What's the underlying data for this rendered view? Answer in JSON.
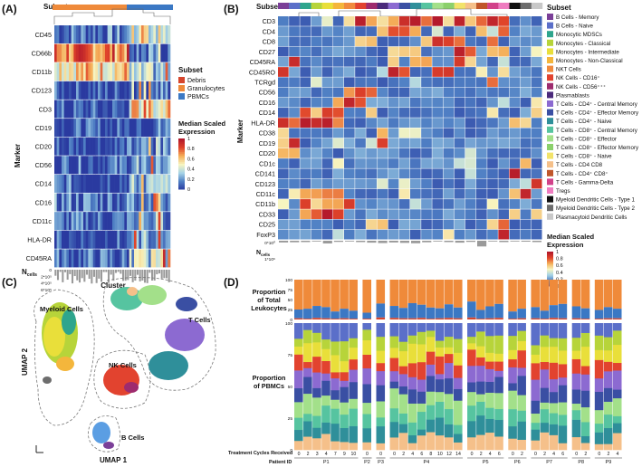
{
  "panels": {
    "A": "(A)",
    "B": "(B)",
    "C": "(C)",
    "D": "(D)"
  },
  "shared": {
    "subset_header": "Subset",
    "marker_label": "Marker",
    "ncells_prefix": "N",
    "ncells_sub": "cells",
    "legend_title_1": "Median Scaled",
    "legend_title_2": "Expression",
    "colorbar_ticks": [
      "1",
      "0.8",
      "0.6",
      "0.4",
      "0.2",
      "0"
    ],
    "colorbar_tick_values": [
      1,
      0.8,
      0.6,
      0.4,
      0.2,
      0
    ],
    "heat_colors": [
      "#2a3aa0",
      "#4f7fc4",
      "#a6d3e6",
      "#f7f5c0",
      "#f5b05a",
      "#e0442a",
      "#b2182b"
    ]
  },
  "chart_data": [
    {
      "id": "A",
      "type": "heatmap",
      "xlabel": "Cluster",
      "ylabel": "Marker",
      "markers": [
        "CD45",
        "CD66b",
        "CD11b",
        "CD123",
        "CD3",
        "CD19",
        "CD20",
        "CD56",
        "CD14",
        "CD16",
        "CD11c",
        "HLA-DR",
        "CD45RA"
      ],
      "n_clusters": 48,
      "subset_legend": [
        {
          "name": "Debris",
          "color": "#d6452c"
        },
        {
          "name": "Granulocytes",
          "color": "#ef8a3a"
        },
        {
          "name": "PBMCs",
          "color": "#3b78c4"
        }
      ],
      "ncells_ticks": [
        "0",
        "2*10⁵",
        "4*10⁵",
        "6*10⁵"
      ],
      "ncells_max": 600000
    },
    {
      "id": "B",
      "type": "heatmap",
      "ylabel": "Marker",
      "markers": [
        "CD3",
        "CD4",
        "CD8",
        "CD27",
        "CD45RA",
        "CD45RO",
        "TCRgd",
        "CD56",
        "CD16",
        "CD14",
        "HLA-DR",
        "CD38",
        "CD19",
        "CD20",
        "CD1c",
        "CD141",
        "CD123",
        "CD11c",
        "CD11b",
        "CD33",
        "CD25",
        "FoxP3"
      ],
      "subsets": [
        {
          "name": "B Cells - Memory",
          "color": "#7b3f98"
        },
        {
          "name": "B Cells - Naive",
          "color": "#5b6fc9"
        },
        {
          "name": "Monocytic MDSCs",
          "color": "#2ea58d"
        },
        {
          "name": "Monocytes - Classical",
          "color": "#b7d43a"
        },
        {
          "name": "Monocytes - Intermediate",
          "color": "#e9df3a"
        },
        {
          "name": "Monocytes - Non-Classical",
          "color": "#f4b63c"
        },
        {
          "name": "NKT Cells",
          "color": "#f08a3e"
        },
        {
          "name": "NK Cells - CD16⁺",
          "color": "#e2432f"
        },
        {
          "name": "NK Cells - CD56⁺⁺⁺",
          "color": "#9e2b6e"
        },
        {
          "name": "Plasmablasts",
          "color": "#4b2a7b"
        },
        {
          "name": "T Cells - CD4⁺ - Central Memory",
          "color": "#8c6ad1"
        },
        {
          "name": "T Cells - CD4⁺ - Effector Memory",
          "color": "#3a4fa3"
        },
        {
          "name": "T Cells - CD4⁺ - Naive",
          "color": "#2f8f9a"
        },
        {
          "name": "T Cells - CD8⁺ - Central Memory",
          "color": "#56c4a0"
        },
        {
          "name": "T Cells - CD8⁺ - Effector",
          "color": "#a3e08a"
        },
        {
          "name": "T Cells - CD8⁺ - Effector Memory",
          "color": "#8bd06b"
        },
        {
          "name": "T Cells - CD8⁺ - Naive",
          "color": "#f2e36a"
        },
        {
          "name": "T Cells - CD4 CD8",
          "color": "#f5c08a"
        },
        {
          "name": "T Cells - CD4⁺ CD8⁺",
          "color": "#c0562a"
        },
        {
          "name": "T Cells - Gamma-Delta",
          "color": "#d2428a"
        },
        {
          "name": "Tregs",
          "color": "#ef7cc0"
        },
        {
          "name": "Myeloid Dendritic Cells - Type 1",
          "color": "#111111"
        },
        {
          "name": "Myeloid Dendritic Cells - Type 2",
          "color": "#6d6d6d"
        },
        {
          "name": "Plasmacytoid Dendritic Cells",
          "color": "#c8c8c8"
        }
      ],
      "ncells_ticks": [
        "0*10⁰",
        "1*10⁶"
      ],
      "ncells_max": 1000000,
      "ncells_values": [
        0.05,
        0.04,
        0.03,
        0.0,
        0.1,
        0.02,
        0.0,
        0.03,
        0.06,
        0.08,
        0.05,
        0.07,
        0.09,
        0.04,
        0.0,
        0.03,
        0.06,
        0.02,
        0.25,
        0.0,
        0.03,
        0.0,
        0.01,
        0.03
      ]
    },
    {
      "id": "C",
      "type": "scatter",
      "xlabel": "UMAP 1",
      "ylabel": "UMAP 2",
      "cluster_labels": [
        "Myeloid Cells",
        "NK Cells",
        "T Cells",
        "B Cells"
      ]
    },
    {
      "id": "D",
      "type": "bar",
      "stacked": true,
      "top_label": [
        "Proportion",
        "of Total",
        "Leukocytes"
      ],
      "bottom_label": [
        "Proportion",
        "of PBMCs"
      ],
      "yticks": [
        "100",
        "75",
        "50",
        "25",
        "0"
      ],
      "ylim": [
        0,
        100
      ],
      "cycles_label": "Treatment Cycles Received",
      "patient_label": "Patient ID",
      "patients": [
        {
          "id": "P1",
          "cycles": [
            "0",
            "2",
            "3",
            "4",
            "7",
            "9",
            "10"
          ]
        },
        {
          "id": "P2",
          "cycles": [
            "0"
          ]
        },
        {
          "id": "P3",
          "cycles": [
            "0"
          ]
        },
        {
          "id": "P4",
          "cycles": [
            "0",
            "2",
            "4",
            "6",
            "8",
            "10",
            "12",
            "14"
          ]
        },
        {
          "id": "P5",
          "cycles": [
            "0",
            "2",
            "4",
            "6"
          ]
        },
        {
          "id": "P6",
          "cycles": [
            "0",
            "2"
          ]
        },
        {
          "id": "P7",
          "cycles": [
            "0",
            "2",
            "4",
            "6"
          ]
        },
        {
          "id": "P8",
          "cycles": [
            "0",
            "2"
          ]
        },
        {
          "id": "P9",
          "cycles": [
            "0",
            "2",
            "4"
          ]
        }
      ],
      "top_series": [
        {
          "name": "Granulocytes",
          "color": "#ef8a3a"
        },
        {
          "name": "PBMCs",
          "color": "#3b78c4"
        },
        {
          "name": "Debris",
          "color": "#d6452c"
        }
      ],
      "top_values": {
        "PBMCs": [
          22,
          25,
          30,
          28,
          18,
          24,
          20,
          15,
          35,
          30,
          26,
          38,
          33,
          28,
          25,
          34,
          27,
          40,
          22,
          30,
          35,
          18,
          24,
          28,
          20,
          32,
          36,
          30,
          26,
          22,
          28,
          24
        ],
        "Debris": [
          3,
          2,
          4,
          3,
          2,
          3,
          2,
          2,
          5,
          4,
          3,
          3,
          4,
          2,
          3,
          4,
          3,
          5,
          2,
          3,
          4,
          2,
          3,
          3,
          2,
          4,
          3,
          3,
          2,
          2,
          3,
          3
        ]
      },
      "pbmc_series_order": [
        "T Cells - CD4 CD8",
        "T Cells - CD4⁺ - Naive",
        "T Cells - CD8⁺ - Central Memory",
        "T Cells - CD8⁺ - Effector",
        "T Cells - CD4⁺ - Effector Memory",
        "T Cells - CD4⁺ - Central Memory",
        "NK Cells - CD16⁺",
        "Monocytes - Intermediate",
        "Monocytes - Classical",
        "B Cells - Naive"
      ]
    }
  ]
}
